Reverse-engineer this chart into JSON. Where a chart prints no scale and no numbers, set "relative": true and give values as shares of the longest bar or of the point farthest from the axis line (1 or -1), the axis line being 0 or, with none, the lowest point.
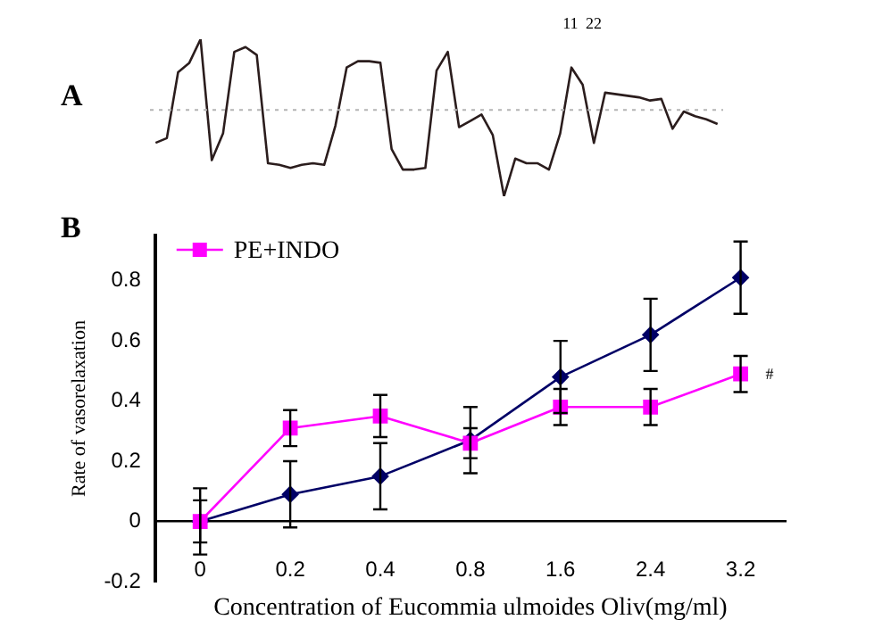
{
  "chart_data": [
    {
      "type": "line",
      "title": "A",
      "relative": true,
      "color": "#2b1d1d",
      "marker": "none",
      "categories": [
        null,
        null,
        null,
        null,
        null,
        null,
        null,
        null,
        null,
        null,
        null,
        null,
        null,
        null,
        null,
        null,
        null,
        null,
        null,
        null,
        null,
        null,
        null,
        null,
        null,
        null,
        null,
        null,
        null,
        null,
        null,
        null,
        null,
        null,
        null,
        null,
        null,
        null,
        null,
        null,
        null,
        null,
        null,
        null,
        null,
        null,
        null,
        null,
        null,
        null,
        null
      ],
      "values": [
        0.34,
        0.37,
        0.79,
        0.85,
        1.0,
        0.23,
        0.4,
        0.92,
        0.95,
        0.9,
        0.21,
        0.2,
        0.18,
        0.2,
        0.21,
        0.2,
        0.45,
        0.82,
        0.86,
        0.86,
        0.85,
        0.3,
        0.17,
        0.17,
        0.18,
        0.8,
        0.92,
        0.44,
        0.48,
        0.52,
        0.39,
        0,
        0.24,
        0.21,
        0.21,
        0.17,
        0.4,
        0.82,
        0.71,
        0.34,
        0.66,
        0.65,
        0.64,
        0.63,
        0.61,
        0.62,
        0.43,
        0.54,
        0.51,
        0.49,
        0.46
      ],
      "ref_lines": [
        {
          "axis": "y",
          "value": 0.55,
          "line_style": "dotted",
          "color": "#b4b4b4"
        }
      ],
      "annotations": [
        "11",
        "22"
      ]
    },
    {
      "type": "line",
      "title": "B",
      "xlabel": "Concentration of Eucommia ulmoides Oliv(mg/ml)",
      "ylabel": "Rate of vasorelaxation",
      "categories": [
        "0",
        "0.2",
        "0.4",
        "0.8",
        "1.6",
        "2.4",
        "3.2"
      ],
      "ylim": [
        -0.2,
        0.95
      ],
      "yticks": [
        -0.2,
        0,
        0.2,
        0.4,
        0.6,
        0.8
      ],
      "grid": false,
      "legend": "top left",
      "series": [
        {
          "color": "#000066",
          "marker": "diamond",
          "values": [
            0,
            0.09,
            0.15,
            0.27,
            0.48,
            0.62,
            0.81
          ],
          "errors": [
            0.11,
            0.11,
            0.11,
            0.11,
            0.12,
            0.12,
            0.12
          ]
        },
        {
          "name": "PE+INDO",
          "color": "#ff00ff",
          "marker": "square",
          "values": [
            0,
            0.31,
            0.35,
            0.26,
            0.38,
            0.38,
            0.49
          ],
          "errors": [
            0.07,
            0.06,
            0.07,
            0.05,
            0.06,
            0.06,
            0.06
          ]
        }
      ],
      "annotations": [
        {
          "text": "#",
          "x": "3.2",
          "y": 0.49
        }
      ]
    }
  ]
}
